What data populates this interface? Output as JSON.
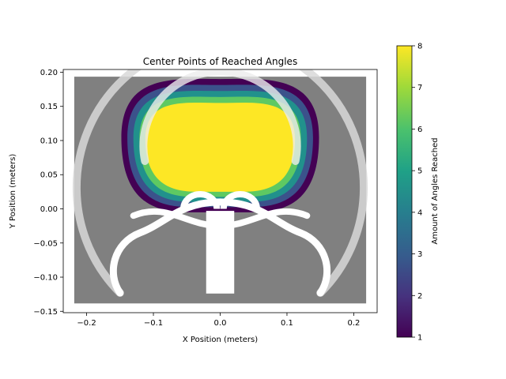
{
  "chart_data": {
    "type": "scatter",
    "title": "Center Points of Reached Angles",
    "xlabel": "X Position (meters)",
    "ylabel": "Y Position (meters)",
    "xlim": [
      -0.235,
      0.235
    ],
    "ylim": [
      -0.152,
      0.204
    ],
    "xticks": [
      -0.2,
      -0.1,
      0.0,
      0.1,
      0.2
    ],
    "xtick_labels": [
      "−0.2",
      "−0.1",
      "0.0",
      "0.1",
      "0.2"
    ],
    "yticks": [
      -0.15,
      -0.1,
      -0.05,
      0.0,
      0.05,
      0.1,
      0.15,
      0.2
    ],
    "ytick_labels": [
      "−0.15",
      "−0.10",
      "−0.05",
      "0.00",
      "0.05",
      "0.10",
      "0.15",
      "0.20"
    ],
    "grid": false,
    "background_grid": {
      "x_range": [
        -0.215,
        0.215
      ],
      "y_range": [
        -0.135,
        0.19
      ],
      "color": "#808080"
    },
    "reached_region": {
      "center": [
        0.0,
        0.085
      ],
      "outer_extent": {
        "x_radius": 0.148,
        "y_top": 0.19,
        "y_bottom": -0.005
      },
      "core_extent": {
        "x_radius": 0.112,
        "y_top": 0.155,
        "y_bottom": 0.025
      },
      "value_levels": [
        {
          "value": 1,
          "color": "#440154"
        },
        {
          "value": 2,
          "color": "#3b528b"
        },
        {
          "value": 4,
          "color": "#21918c"
        },
        {
          "value": 6,
          "color": "#5ec962"
        },
        {
          "value": 8,
          "color": "#fde725"
        }
      ]
    },
    "trajectory_paths": {
      "outer_arc": {
        "radius": 0.215,
        "center": [
          0.0,
          0.0
        ],
        "end_points": [
          [
            -0.15,
            -0.123
          ],
          [
            0.15,
            -0.123
          ]
        ]
      },
      "inner_arc": {
        "radius": 0.115,
        "center": [
          0.0,
          0.09
        ]
      },
      "color": "#ffffff"
    },
    "colorbar": {
      "label": "Amount of Angles Reached",
      "range": [
        1,
        8
      ],
      "ticks": [
        1,
        2,
        3,
        4,
        5,
        6,
        7,
        8
      ],
      "colormap": "viridis"
    }
  }
}
